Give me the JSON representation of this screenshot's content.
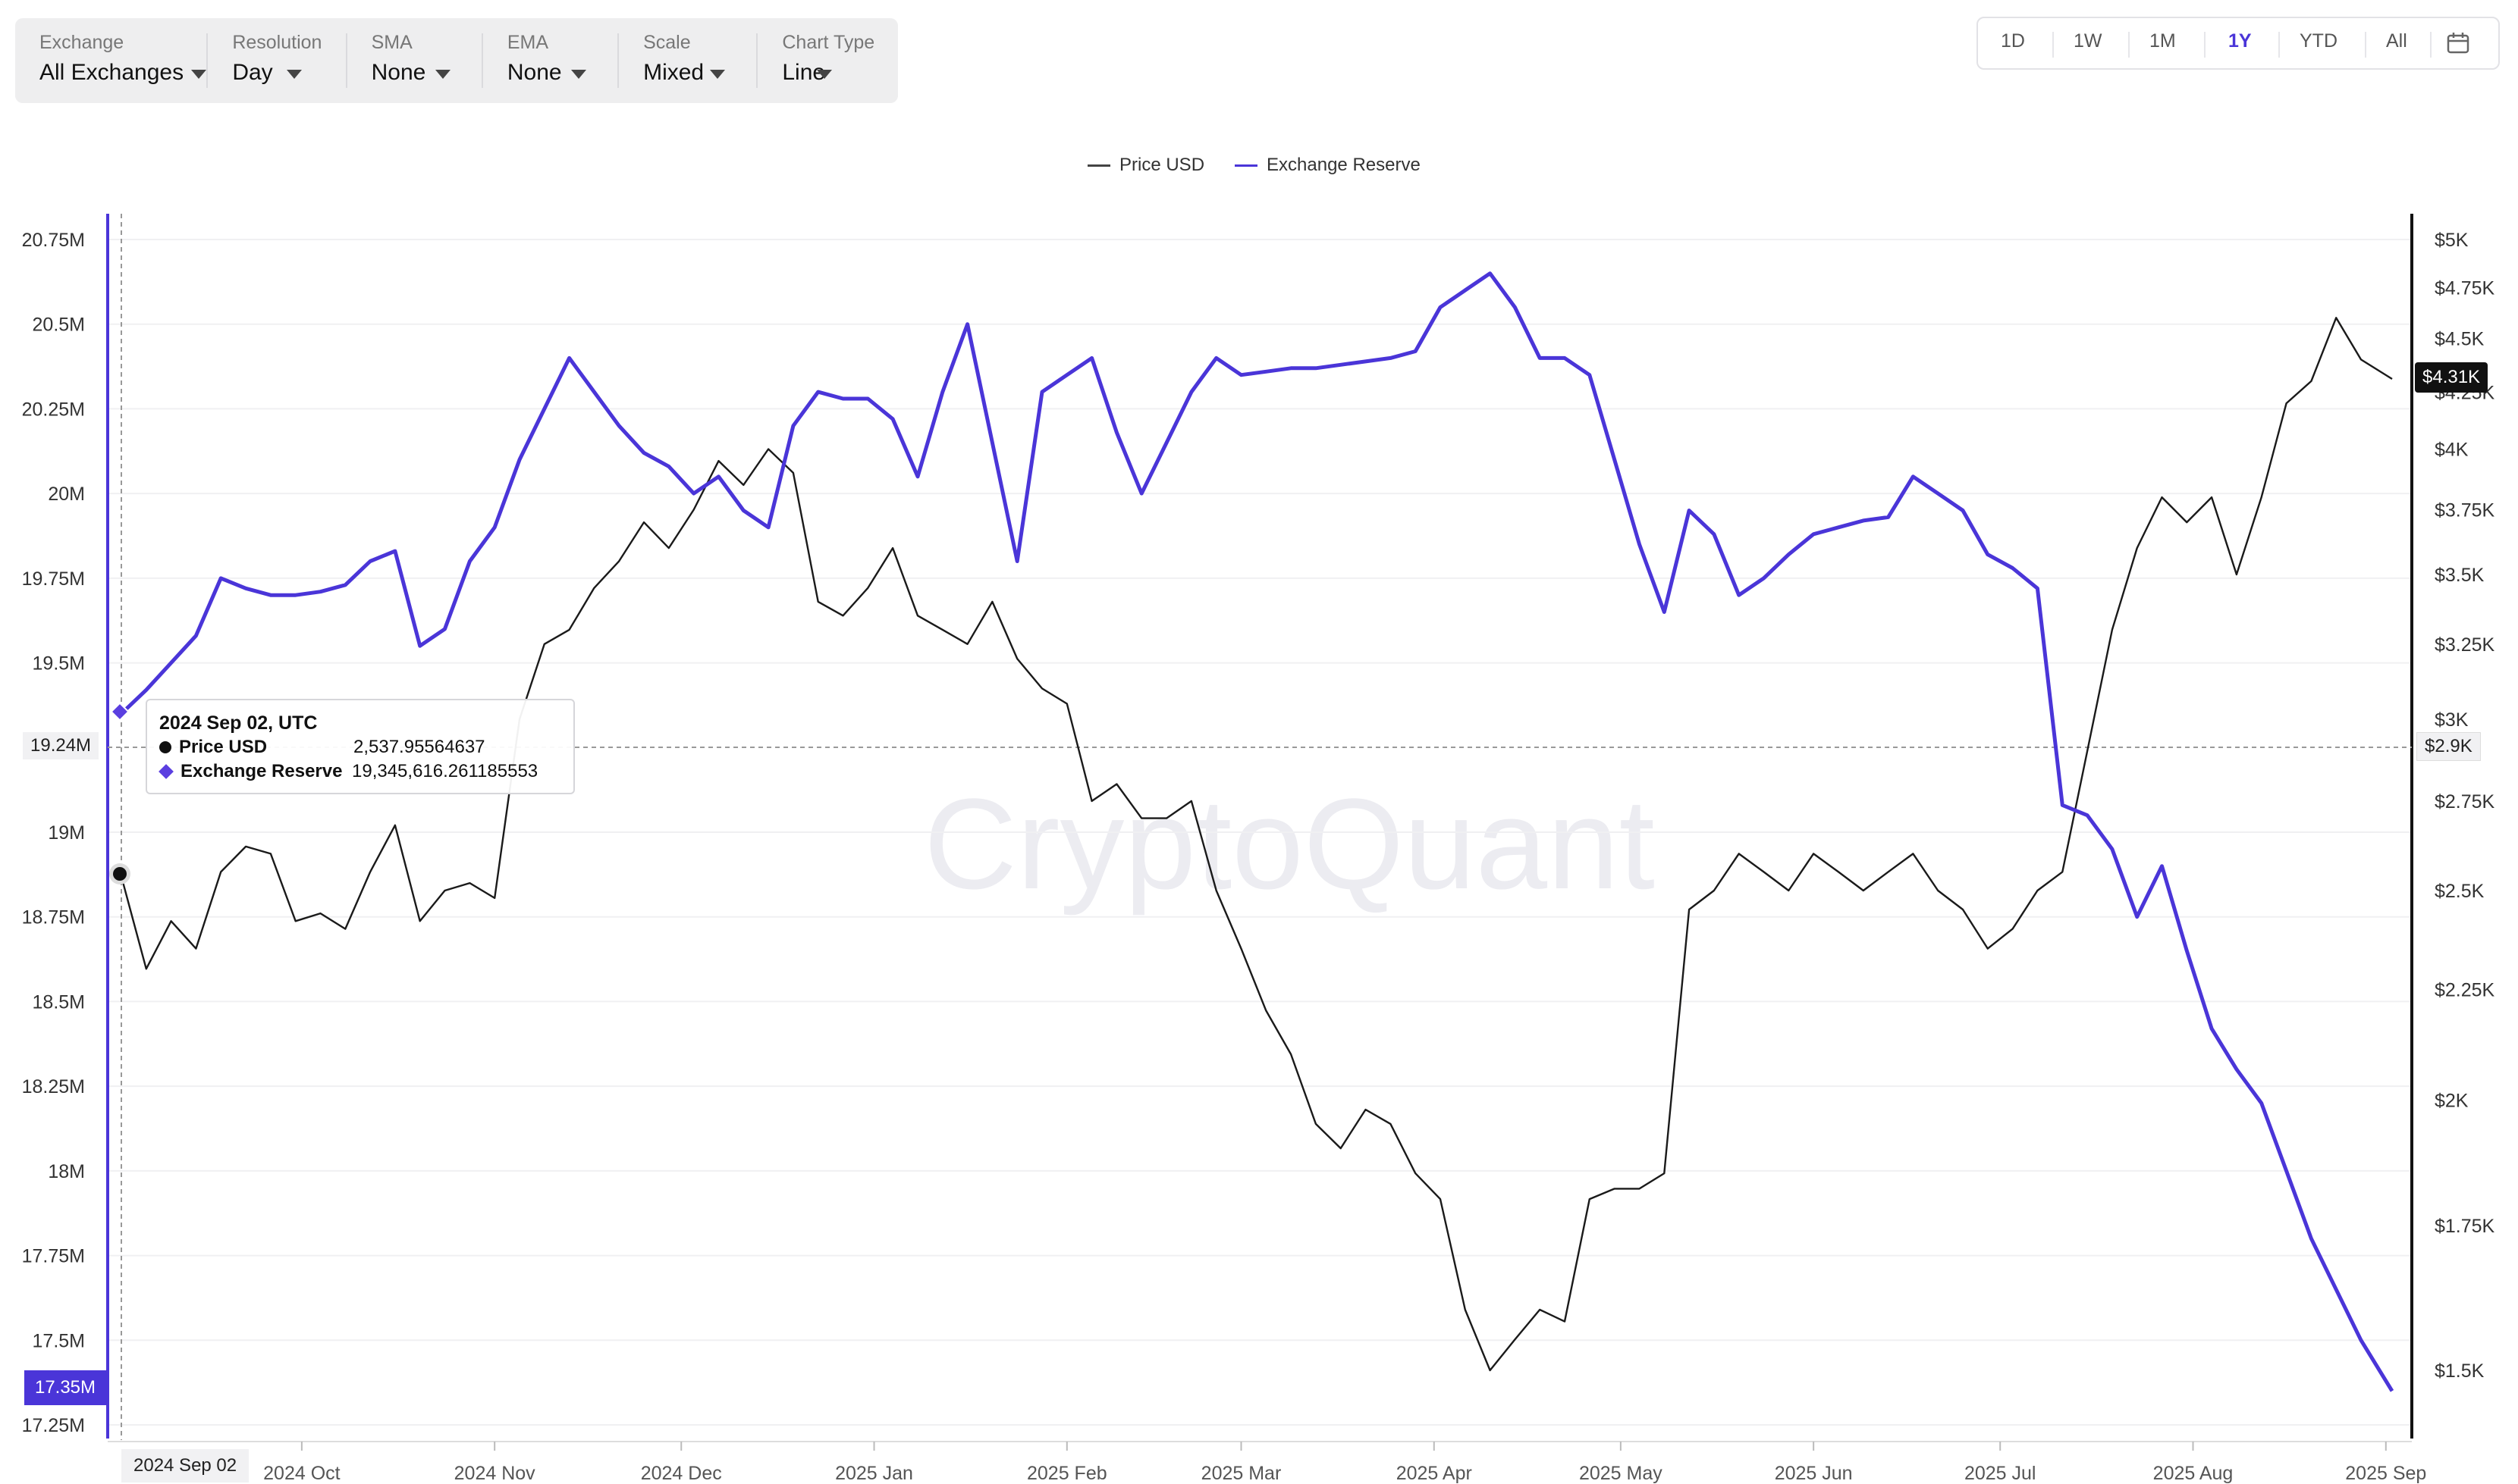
{
  "toolbar": {
    "items": [
      {
        "label": "Exchange",
        "value": "All Exchanges"
      },
      {
        "label": "Resolution",
        "value": "Day"
      },
      {
        "label": "SMA",
        "value": "None"
      },
      {
        "label": "EMA",
        "value": "None"
      },
      {
        "label": "Scale",
        "value": "Mixed"
      },
      {
        "label": "Chart Type",
        "value": "Line"
      }
    ]
  },
  "ranges": {
    "buttons": [
      "1D",
      "1W",
      "1M",
      "1Y",
      "YTD",
      "All"
    ],
    "active": "1Y",
    "calendar_icon": "calendar-icon"
  },
  "watermark": "CryptoQuant",
  "colors": {
    "reserve": "#4a35d8",
    "price": "#1a1a1a",
    "active": "#4a35d8"
  },
  "tooltip": {
    "title": "2024 Sep 02, UTC",
    "rows": [
      {
        "name": "Price USD",
        "value": "2,537.95564637"
      },
      {
        "name": "Exchange Reserve",
        "value": "19,345,616.261185553"
      }
    ]
  },
  "badges": {
    "left_crosshair": "19.24M",
    "left_current": "17.35M",
    "right_crosshair": "$2.9K",
    "right_current": "$4.31K",
    "date": "2024 Sep 02"
  },
  "chart_data": {
    "type": "line",
    "legend": [
      "Price USD",
      "Exchange Reserve"
    ],
    "legend_position": "top-center",
    "grid": true,
    "x_tick_labels": [
      "2024 Oct",
      "2024 Nov",
      "2024 Dec",
      "2025 Jan",
      "2025 Feb",
      "2025 Mar",
      "2025 Apr",
      "2025 May",
      "2025 Jun",
      "2025 Jul",
      "2025 Aug",
      "2025 Sep"
    ],
    "left_axis": {
      "ticks": [
        "20.75M",
        "20.5M",
        "20.25M",
        "20M",
        "19.75M",
        "19.5M",
        "19M",
        "18.75M",
        "18.5M",
        "18.25M",
        "18M",
        "17.75M",
        "17.5M",
        "17.25M"
      ],
      "tick_values": [
        20.75,
        20.5,
        20.25,
        20.0,
        19.75,
        19.5,
        19.0,
        18.75,
        18.5,
        18.25,
        18.0,
        17.75,
        17.5,
        17.25
      ],
      "range": [
        17.25,
        20.75
      ]
    },
    "right_axis": {
      "scale": "log",
      "ticks": [
        "$5K",
        "$4.75K",
        "$4.5K",
        "$4.25K",
        "$4K",
        "$3.75K",
        "$3.5K",
        "$3.25K",
        "$3K",
        "$2.75K",
        "$2.5K",
        "$2.25K",
        "$2K",
        "$1.75K",
        "$1.5K"
      ],
      "tick_values": [
        5000,
        4750,
        4500,
        4250,
        4000,
        3750,
        3500,
        3250,
        3000,
        2750,
        2500,
        2250,
        2000,
        1750,
        1500
      ]
    },
    "series": [
      {
        "name": "Exchange Reserve",
        "axis": "left",
        "x": [
          "2024-09-02",
          "2024-09-06",
          "2024-09-10",
          "2024-09-14",
          "2024-09-18",
          "2024-09-22",
          "2024-09-26",
          "2024-09-30",
          "2024-10-04",
          "2024-10-08",
          "2024-10-12",
          "2024-10-16",
          "2024-10-20",
          "2024-10-24",
          "2024-10-28",
          "2024-11-01",
          "2024-11-05",
          "2024-11-09",
          "2024-11-13",
          "2024-11-17",
          "2024-11-21",
          "2024-11-25",
          "2024-11-29",
          "2024-12-03",
          "2024-12-07",
          "2024-12-11",
          "2024-12-15",
          "2024-12-19",
          "2024-12-23",
          "2024-12-27",
          "2024-12-31",
          "2025-01-04",
          "2025-01-08",
          "2025-01-12",
          "2025-01-16",
          "2025-01-20",
          "2025-01-24",
          "2025-01-28",
          "2025-02-01",
          "2025-02-05",
          "2025-02-09",
          "2025-02-13",
          "2025-02-17",
          "2025-02-21",
          "2025-02-25",
          "2025-03-01",
          "2025-03-05",
          "2025-03-09",
          "2025-03-13",
          "2025-03-17",
          "2025-03-21",
          "2025-03-25",
          "2025-03-29",
          "2025-04-02",
          "2025-04-06",
          "2025-04-10",
          "2025-04-14",
          "2025-04-18",
          "2025-04-22",
          "2025-04-26",
          "2025-04-30",
          "2025-05-04",
          "2025-05-08",
          "2025-05-12",
          "2025-05-16",
          "2025-05-20",
          "2025-05-24",
          "2025-05-28",
          "2025-06-01",
          "2025-06-05",
          "2025-06-09",
          "2025-06-13",
          "2025-06-17",
          "2025-06-21",
          "2025-06-25",
          "2025-06-29",
          "2025-07-03",
          "2025-07-07",
          "2025-07-11",
          "2025-07-15",
          "2025-07-19",
          "2025-07-23",
          "2025-07-27",
          "2025-07-31",
          "2025-08-04",
          "2025-08-08",
          "2025-08-12",
          "2025-08-16",
          "2025-08-20",
          "2025-08-24",
          "2025-08-28",
          "2025-09-02"
        ],
        "values": [
          19.35,
          19.42,
          19.5,
          19.58,
          19.75,
          19.72,
          19.7,
          19.7,
          19.71,
          19.73,
          19.8,
          19.83,
          19.55,
          19.6,
          19.8,
          19.9,
          20.1,
          20.25,
          20.4,
          20.3,
          20.2,
          20.12,
          20.08,
          20.0,
          20.05,
          19.95,
          19.9,
          20.2,
          20.3,
          20.28,
          20.28,
          20.22,
          20.05,
          20.3,
          20.5,
          20.15,
          19.8,
          20.3,
          20.35,
          20.4,
          20.18,
          20.0,
          20.15,
          20.3,
          20.4,
          20.35,
          20.36,
          20.37,
          20.37,
          20.38,
          20.39,
          20.4,
          20.42,
          20.55,
          20.6,
          20.65,
          20.55,
          20.4,
          20.4,
          20.35,
          20.1,
          19.85,
          19.65,
          19.95,
          19.88,
          19.7,
          19.75,
          19.82,
          19.88,
          19.9,
          19.92,
          19.93,
          20.05,
          20.0,
          19.95,
          19.82,
          19.78,
          19.72,
          19.08,
          19.05,
          18.95,
          18.75,
          18.9,
          18.65,
          18.42,
          18.3,
          18.2,
          18.0,
          17.8,
          17.65,
          17.5,
          17.35
        ]
      },
      {
        "name": "Price USD",
        "axis": "right",
        "x": [
          "2024-09-02",
          "2024-09-06",
          "2024-09-10",
          "2024-09-14",
          "2024-09-18",
          "2024-09-22",
          "2024-09-26",
          "2024-09-30",
          "2024-10-04",
          "2024-10-08",
          "2024-10-12",
          "2024-10-16",
          "2024-10-20",
          "2024-10-24",
          "2024-10-28",
          "2024-11-01",
          "2024-11-05",
          "2024-11-09",
          "2024-11-13",
          "2024-11-17",
          "2024-11-21",
          "2024-11-25",
          "2024-11-29",
          "2024-12-03",
          "2024-12-07",
          "2024-12-11",
          "2024-12-15",
          "2024-12-19",
          "2024-12-23",
          "2024-12-27",
          "2024-12-31",
          "2025-01-04",
          "2025-01-08",
          "2025-01-12",
          "2025-01-16",
          "2025-01-20",
          "2025-01-24",
          "2025-01-28",
          "2025-02-01",
          "2025-02-05",
          "2025-02-09",
          "2025-02-13",
          "2025-02-17",
          "2025-02-21",
          "2025-02-25",
          "2025-03-01",
          "2025-03-05",
          "2025-03-09",
          "2025-03-13",
          "2025-03-17",
          "2025-03-21",
          "2025-03-25",
          "2025-03-29",
          "2025-04-02",
          "2025-04-06",
          "2025-04-10",
          "2025-04-14",
          "2025-04-18",
          "2025-04-22",
          "2025-04-26",
          "2025-04-30",
          "2025-05-04",
          "2025-05-08",
          "2025-05-12",
          "2025-05-16",
          "2025-05-20",
          "2025-05-24",
          "2025-05-28",
          "2025-06-01",
          "2025-06-05",
          "2025-06-09",
          "2025-06-13",
          "2025-06-17",
          "2025-06-21",
          "2025-06-25",
          "2025-06-29",
          "2025-07-03",
          "2025-07-07",
          "2025-07-11",
          "2025-07-15",
          "2025-07-19",
          "2025-07-23",
          "2025-07-27",
          "2025-07-31",
          "2025-08-04",
          "2025-08-08",
          "2025-08-12",
          "2025-08-16",
          "2025-08-20",
          "2025-08-24",
          "2025-08-28",
          "2025-09-02"
        ],
        "values": [
          2538,
          2300,
          2420,
          2350,
          2550,
          2620,
          2600,
          2420,
          2440,
          2400,
          2550,
          2680,
          2420,
          2500,
          2520,
          2480,
          3000,
          3250,
          3300,
          3450,
          3550,
          3700,
          3600,
          3750,
          3950,
          3850,
          4000,
          3900,
          3400,
          3350,
          3450,
          3600,
          3350,
          3300,
          3250,
          3400,
          3200,
          3100,
          3050,
          2750,
          2800,
          2700,
          2700,
          2750,
          2500,
          2350,
          2200,
          2100,
          1950,
          1900,
          1980,
          1950,
          1850,
          1800,
          1600,
          1500,
          1550,
          1600,
          1580,
          1800,
          1820,
          1820,
          1850,
          2450,
          2500,
          2600,
          2550,
          2500,
          2600,
          2550,
          2500,
          2550,
          2600,
          2500,
          2450,
          2350,
          2400,
          2500,
          2550,
          2900,
          3300,
          3600,
          3800,
          3700,
          3800,
          3500,
          3800,
          4200,
          4300,
          4600,
          4400,
          4310
        ]
      }
    ]
  }
}
